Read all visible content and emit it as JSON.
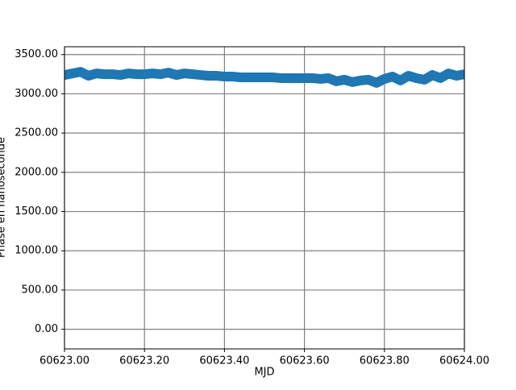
{
  "chart_data": {
    "type": "line",
    "xlabel": "MJD",
    "ylabel": "Phase en nanoseconde",
    "x": [
      60623.0,
      60623.02,
      60623.04,
      60623.06,
      60623.08,
      60623.1,
      60623.12,
      60623.14,
      60623.16,
      60623.18,
      60623.2,
      60623.22,
      60623.24,
      60623.26,
      60623.28,
      60623.3,
      60623.32,
      60623.34,
      60623.36,
      60623.38,
      60623.4,
      60623.42,
      60623.44,
      60623.46,
      60623.48,
      60623.5,
      60623.52,
      60623.54,
      60623.56,
      60623.58,
      60623.6,
      60623.62,
      60623.64,
      60623.66,
      60623.68,
      60623.7,
      60623.72,
      60623.74,
      60623.76,
      60623.78,
      60623.8,
      60623.82,
      60623.84,
      60623.86,
      60623.88,
      60623.9,
      60623.92,
      60623.94,
      60623.96,
      60623.98,
      60624.0
    ],
    "series": [
      {
        "name": "Phase",
        "color": "#1f77b4",
        "values": [
          3240,
          3260,
          3280,
          3230,
          3260,
          3250,
          3250,
          3240,
          3260,
          3250,
          3250,
          3260,
          3250,
          3270,
          3240,
          3260,
          3250,
          3240,
          3230,
          3230,
          3220,
          3220,
          3210,
          3210,
          3210,
          3210,
          3210,
          3200,
          3200,
          3200,
          3200,
          3200,
          3190,
          3200,
          3160,
          3180,
          3150,
          3170,
          3180,
          3140,
          3190,
          3220,
          3170,
          3230,
          3200,
          3180,
          3240,
          3200,
          3260,
          3230,
          3250
        ]
      }
    ],
    "xlim": [
      60623,
      60624
    ],
    "xticks": [
      {
        "value": 60623.0,
        "label": "60623.00"
      },
      {
        "value": 60623.2,
        "label": "60623.20"
      },
      {
        "value": 60623.4,
        "label": "60623.40"
      },
      {
        "value": 60623.6,
        "label": "60623.60"
      },
      {
        "value": 60623.8,
        "label": "60623.80"
      },
      {
        "value": 60624.0,
        "label": "60624.00"
      }
    ],
    "ylim": [
      -250,
      3600
    ],
    "yticks": [
      {
        "value": 0,
        "label": "0.00"
      },
      {
        "value": 500,
        "label": "500.00"
      },
      {
        "value": 1000,
        "label": "1000.00"
      },
      {
        "value": 1500,
        "label": "1500.00"
      },
      {
        "value": 2000,
        "label": "2000.00"
      },
      {
        "value": 2500,
        "label": "2500.00"
      },
      {
        "value": 3000,
        "label": "3000.00"
      },
      {
        "value": 3500,
        "label": "3500.00"
      }
    ],
    "grid": true
  }
}
